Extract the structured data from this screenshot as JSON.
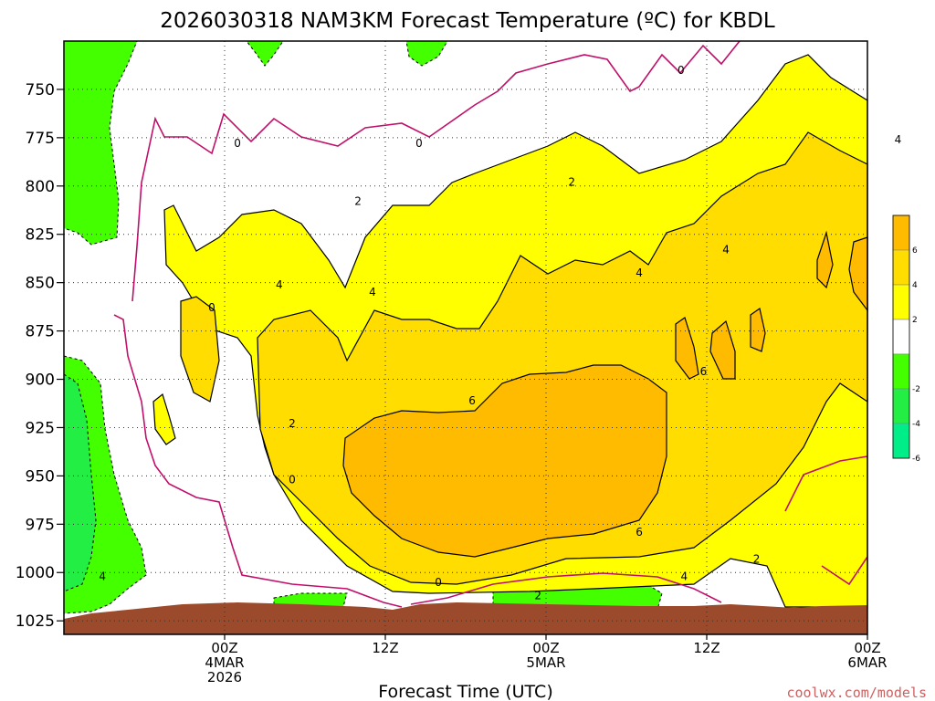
{
  "chart_data": {
    "type": "contour",
    "title": "2026030318 NAM3KM Forecast Temperature (ºC) for KBDL",
    "xlabel": "Forecast Time (UTC)",
    "ylabel": "",
    "credit": "coolwx.com/models",
    "y_axis": {
      "scale": "inverted",
      "ticks": [
        "750",
        "775",
        "800",
        "825",
        "850",
        "875",
        "900",
        "925",
        "950",
        "975",
        "1000",
        "1025"
      ],
      "range": [
        725,
        1032
      ]
    },
    "x_axis": {
      "range_hours": [
        -10,
        40
      ],
      "ticks": [
        {
          "hours": 0,
          "lines": [
            "00Z",
            "4MAR",
            "2026"
          ]
        },
        {
          "hours": 10,
          "lines": [
            "12Z"
          ]
        },
        {
          "hours": 20,
          "lines": [
            "00Z",
            "5MAR"
          ]
        },
        {
          "hours": 30,
          "lines": [
            "12Z"
          ]
        },
        {
          "hours": 40,
          "lines": [
            "00Z",
            "6MAR"
          ]
        }
      ]
    },
    "grid": true,
    "colorbar": {
      "placement": "right",
      "levels": [
        {
          "label": "6",
          "color": "#ffbb00"
        },
        {
          "label": "4",
          "color": "#ffdd00"
        },
        {
          "label": "2",
          "color": "#ffff00"
        },
        {
          "label": "",
          "color": "#ffffff"
        },
        {
          "label": "-2",
          "color": "#44ff00"
        },
        {
          "label": "-4",
          "color": "#22ee44"
        },
        {
          "label": "-6",
          "color": "#00ee88"
        }
      ]
    },
    "contour_labels": [
      {
        "text": "0",
        "hours": 0.8,
        "p": 778
      },
      {
        "text": "0",
        "hours": 12.1,
        "p": 778
      },
      {
        "text": "0",
        "hours": 28.4,
        "p": 740
      },
      {
        "text": "2",
        "hours": 8.3,
        "p": 808
      },
      {
        "text": "2",
        "hours": 21.6,
        "p": 798
      },
      {
        "text": "4",
        "hours": 3.4,
        "p": 851
      },
      {
        "text": "4",
        "hours": 9.2,
        "p": 855
      },
      {
        "text": "4",
        "hours": 25.8,
        "p": 845
      },
      {
        "text": "4",
        "hours": 31.2,
        "p": 833
      },
      {
        "text": "4",
        "hours": 41.9,
        "p": 776
      },
      {
        "text": "0",
        "hours": -0.8,
        "p": 863
      },
      {
        "text": "2",
        "hours": 4.2,
        "p": 923
      },
      {
        "text": "6",
        "hours": 15.4,
        "p": 911
      },
      {
        "text": "6",
        "hours": 29.8,
        "p": 896
      },
      {
        "text": "0",
        "hours": 4.2,
        "p": 952
      },
      {
        "text": "6",
        "hours": 25.8,
        "p": 979
      },
      {
        "text": "2",
        "hours": 33.1,
        "p": 993
      },
      {
        "text": "0",
        "hours": 13.3,
        "p": 1005
      },
      {
        "text": "2",
        "hours": 19.5,
        "p": 1012
      },
      {
        "text": "4",
        "hours": 28.6,
        "p": 1002
      },
      {
        "text": "4",
        "hours": -7.6,
        "p": 1002
      }
    ],
    "terrain_color": "#9b4a2b"
  }
}
